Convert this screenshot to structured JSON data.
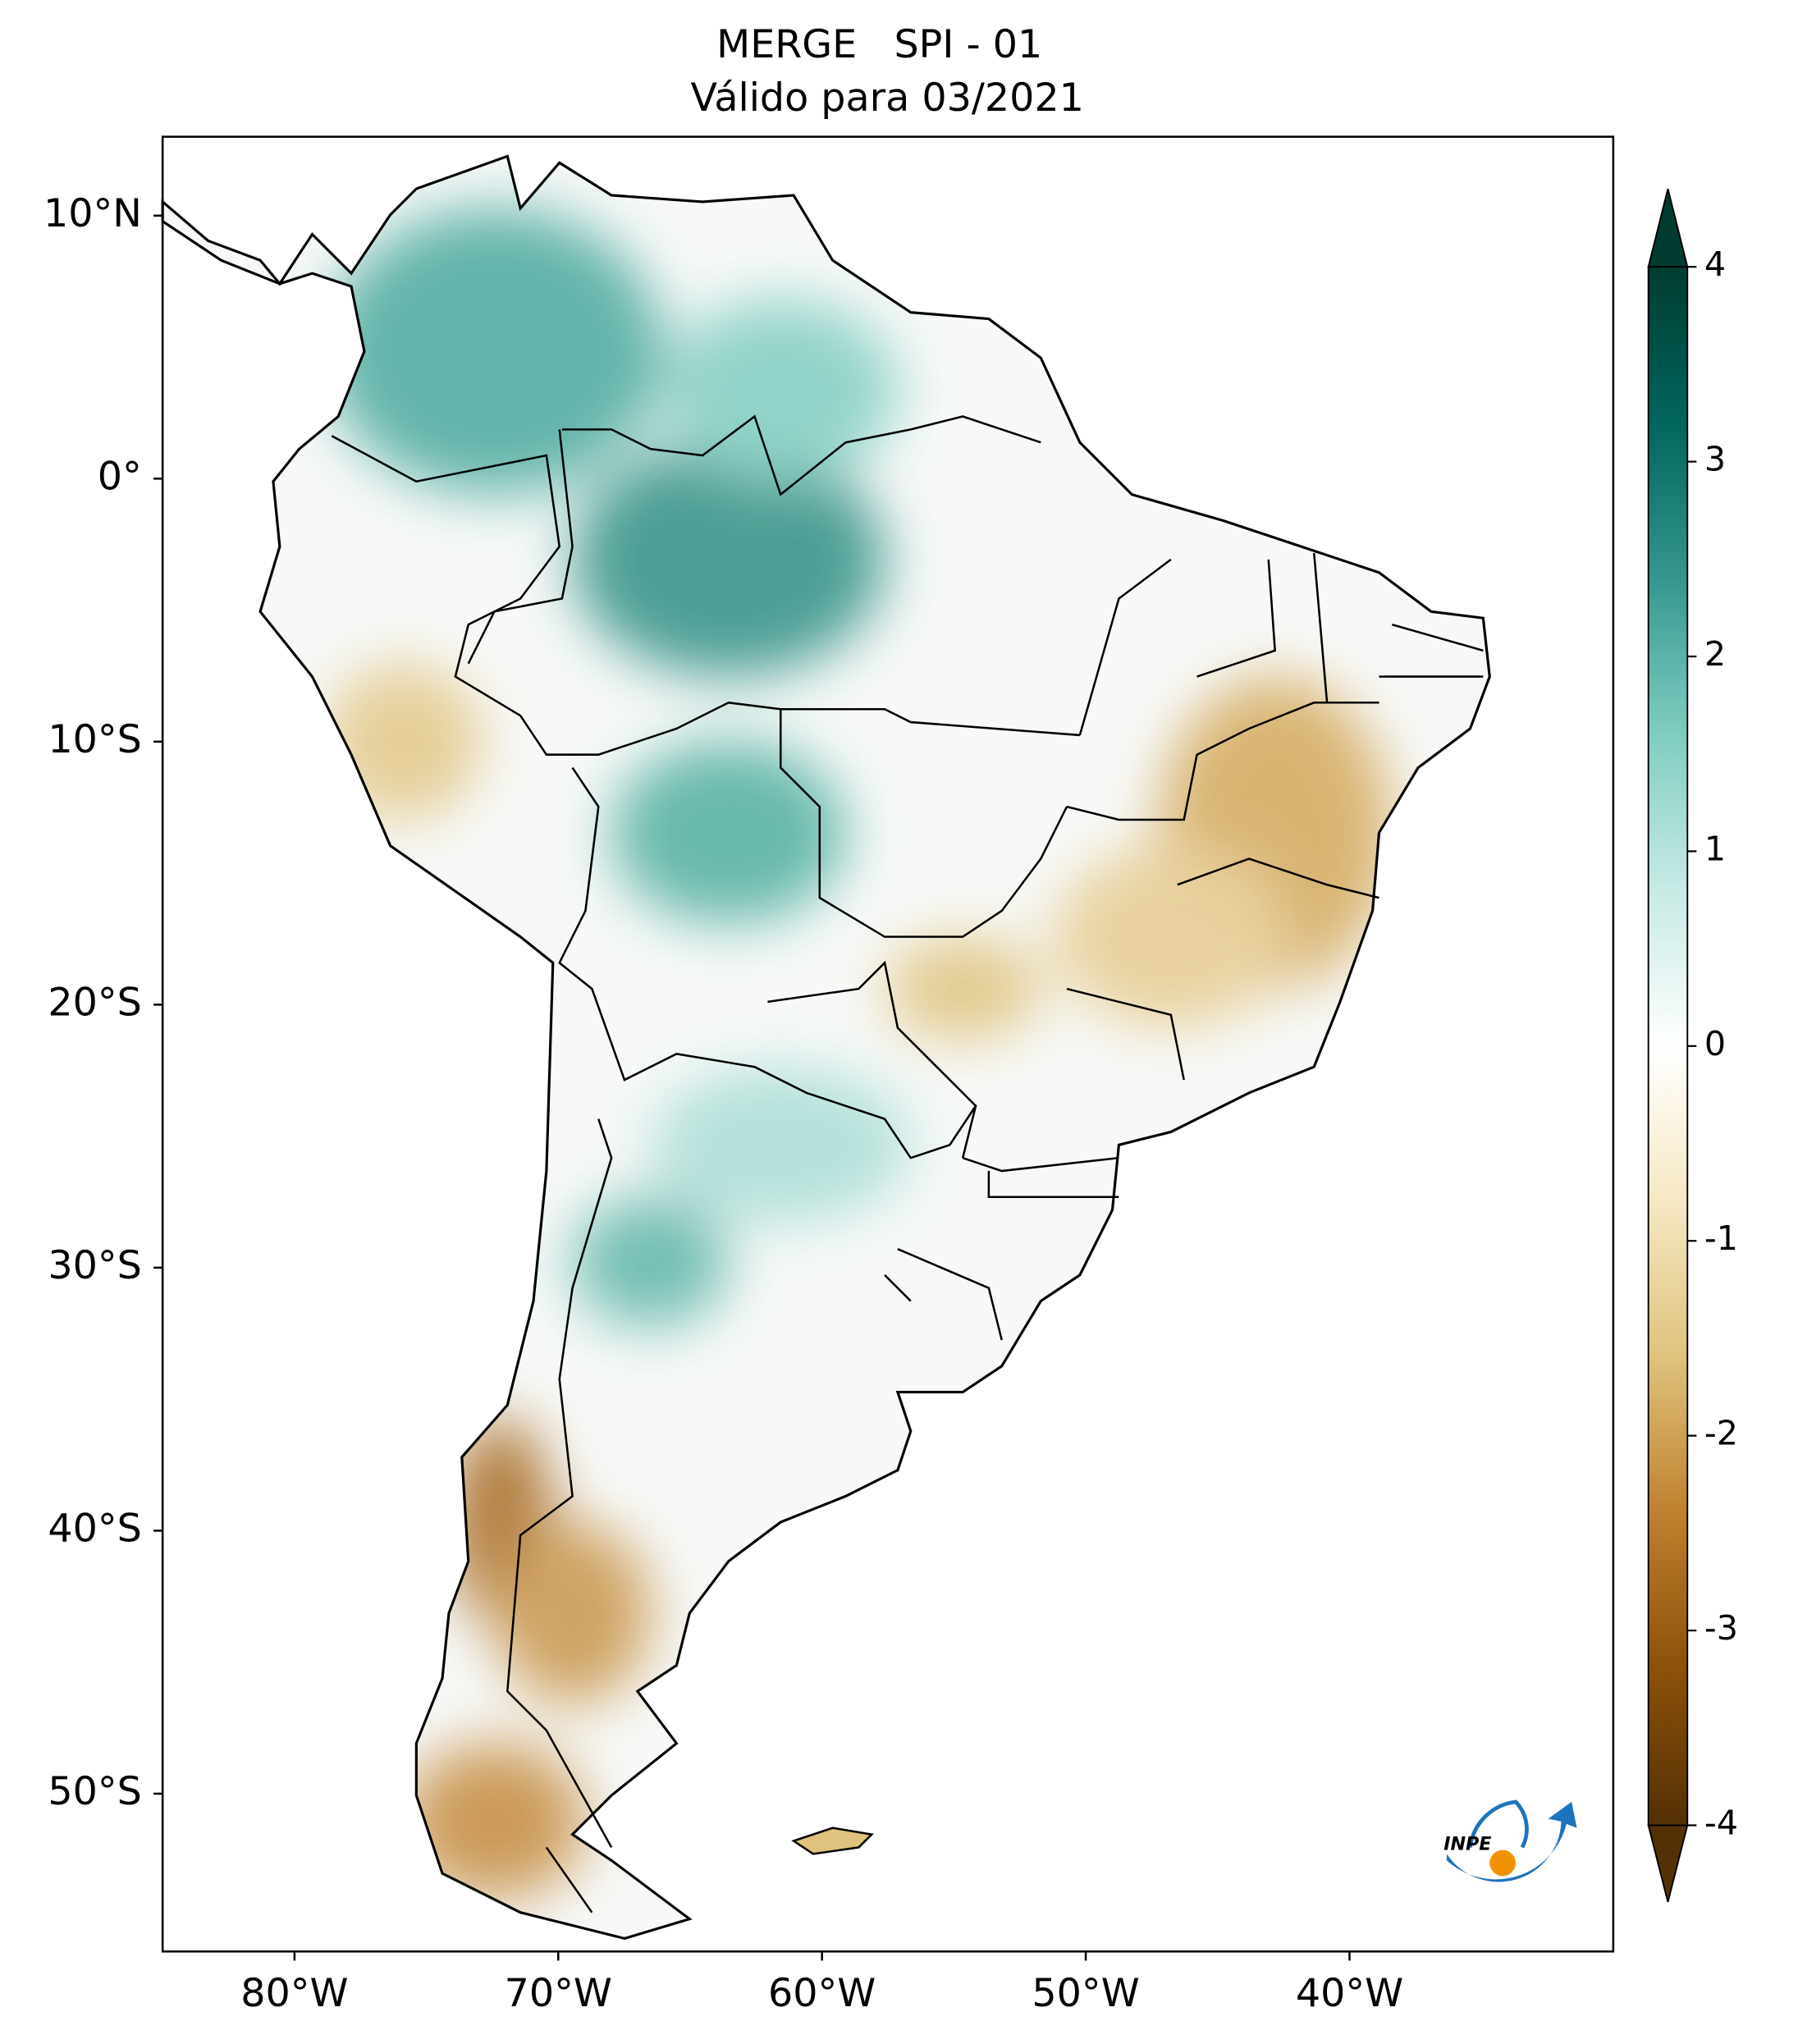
{
  "chart_data": {
    "type": "map",
    "title": "MERGE   SPI - 01",
    "subtitle": "Válido para 03/2021",
    "xlim": [
      -85,
      -30
    ],
    "ylim": [
      -56,
      13
    ],
    "xticks": [
      {
        "value": -80,
        "label": "80°W"
      },
      {
        "value": -70,
        "label": "70°W"
      },
      {
        "value": -60,
        "label": "60°W"
      },
      {
        "value": -50,
        "label": "50°W"
      },
      {
        "value": -40,
        "label": "40°W"
      }
    ],
    "yticks": [
      {
        "value": 10,
        "label": "10°N"
      },
      {
        "value": 0,
        "label": "0°"
      },
      {
        "value": -10,
        "label": "10°S"
      },
      {
        "value": -20,
        "label": "20°S"
      },
      {
        "value": -30,
        "label": "30°S"
      },
      {
        "value": -40,
        "label": "40°S"
      },
      {
        "value": -50,
        "label": "50°S"
      }
    ],
    "colorbar": {
      "lim": [
        -4,
        4
      ],
      "ticks": [
        4,
        3,
        2,
        1,
        0,
        -1,
        -2,
        -3,
        -4
      ],
      "colors": [
        "#543005",
        "#8c510a",
        "#bf812d",
        "#dfc27d",
        "#f6e8c3",
        "#ffffff",
        "#c7eae5",
        "#80cdc1",
        "#35978f",
        "#01665e",
        "#003c30"
      ]
    },
    "logo": "INPE"
  }
}
